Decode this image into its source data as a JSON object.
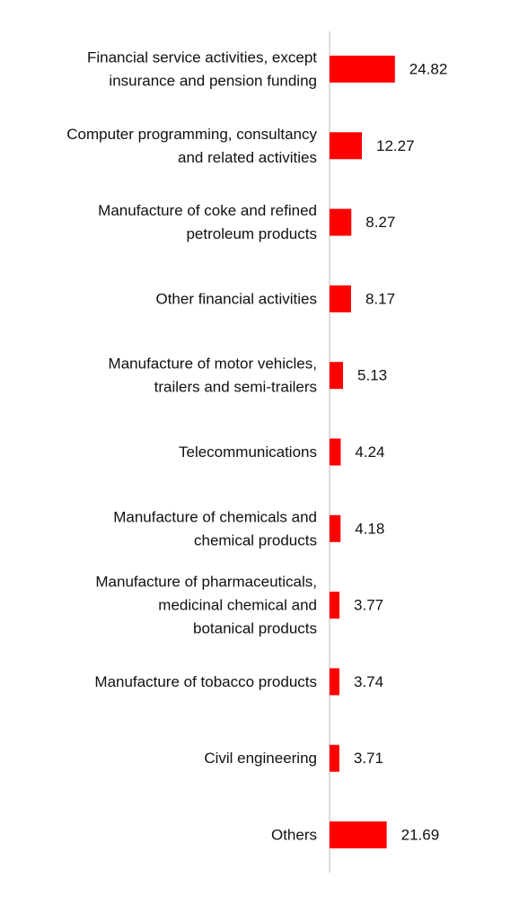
{
  "chart_data": {
    "type": "bar",
    "orientation": "horizontal",
    "categories": [
      [
        "Financial service activities, except",
        "insurance and pension funding"
      ],
      [
        "Computer programming, consultancy",
        "and related activities"
      ],
      [
        "Manufacture of coke and refined",
        "petroleum products"
      ],
      [
        "Other financial activities"
      ],
      [
        "Manufacture of motor vehicles,",
        "trailers and semi-trailers"
      ],
      [
        "Telecommunications"
      ],
      [
        "Manufacture of chemicals and",
        "chemical products"
      ],
      [
        "Manufacture of pharmaceuticals,",
        "medicinal chemical and",
        "botanical products"
      ],
      [
        "Manufacture of tobacco products"
      ],
      [
        "Civil engineering"
      ],
      [
        "Others"
      ]
    ],
    "values": [
      24.82,
      12.27,
      8.27,
      8.17,
      5.13,
      4.24,
      4.18,
      3.77,
      3.74,
      3.71,
      21.69
    ],
    "value_labels": [
      "24.82",
      "12.27",
      "8.27",
      "8.17",
      "5.13",
      "4.24",
      "4.18",
      "3.77",
      "3.74",
      "3.71",
      "21.69"
    ],
    "colors": {
      "bar": "#ff0000",
      "axis": "#d4d4d4",
      "text": "#111111"
    },
    "xlim": [
      0,
      75
    ],
    "axis_visible": false,
    "grid": false,
    "legend": "none"
  }
}
